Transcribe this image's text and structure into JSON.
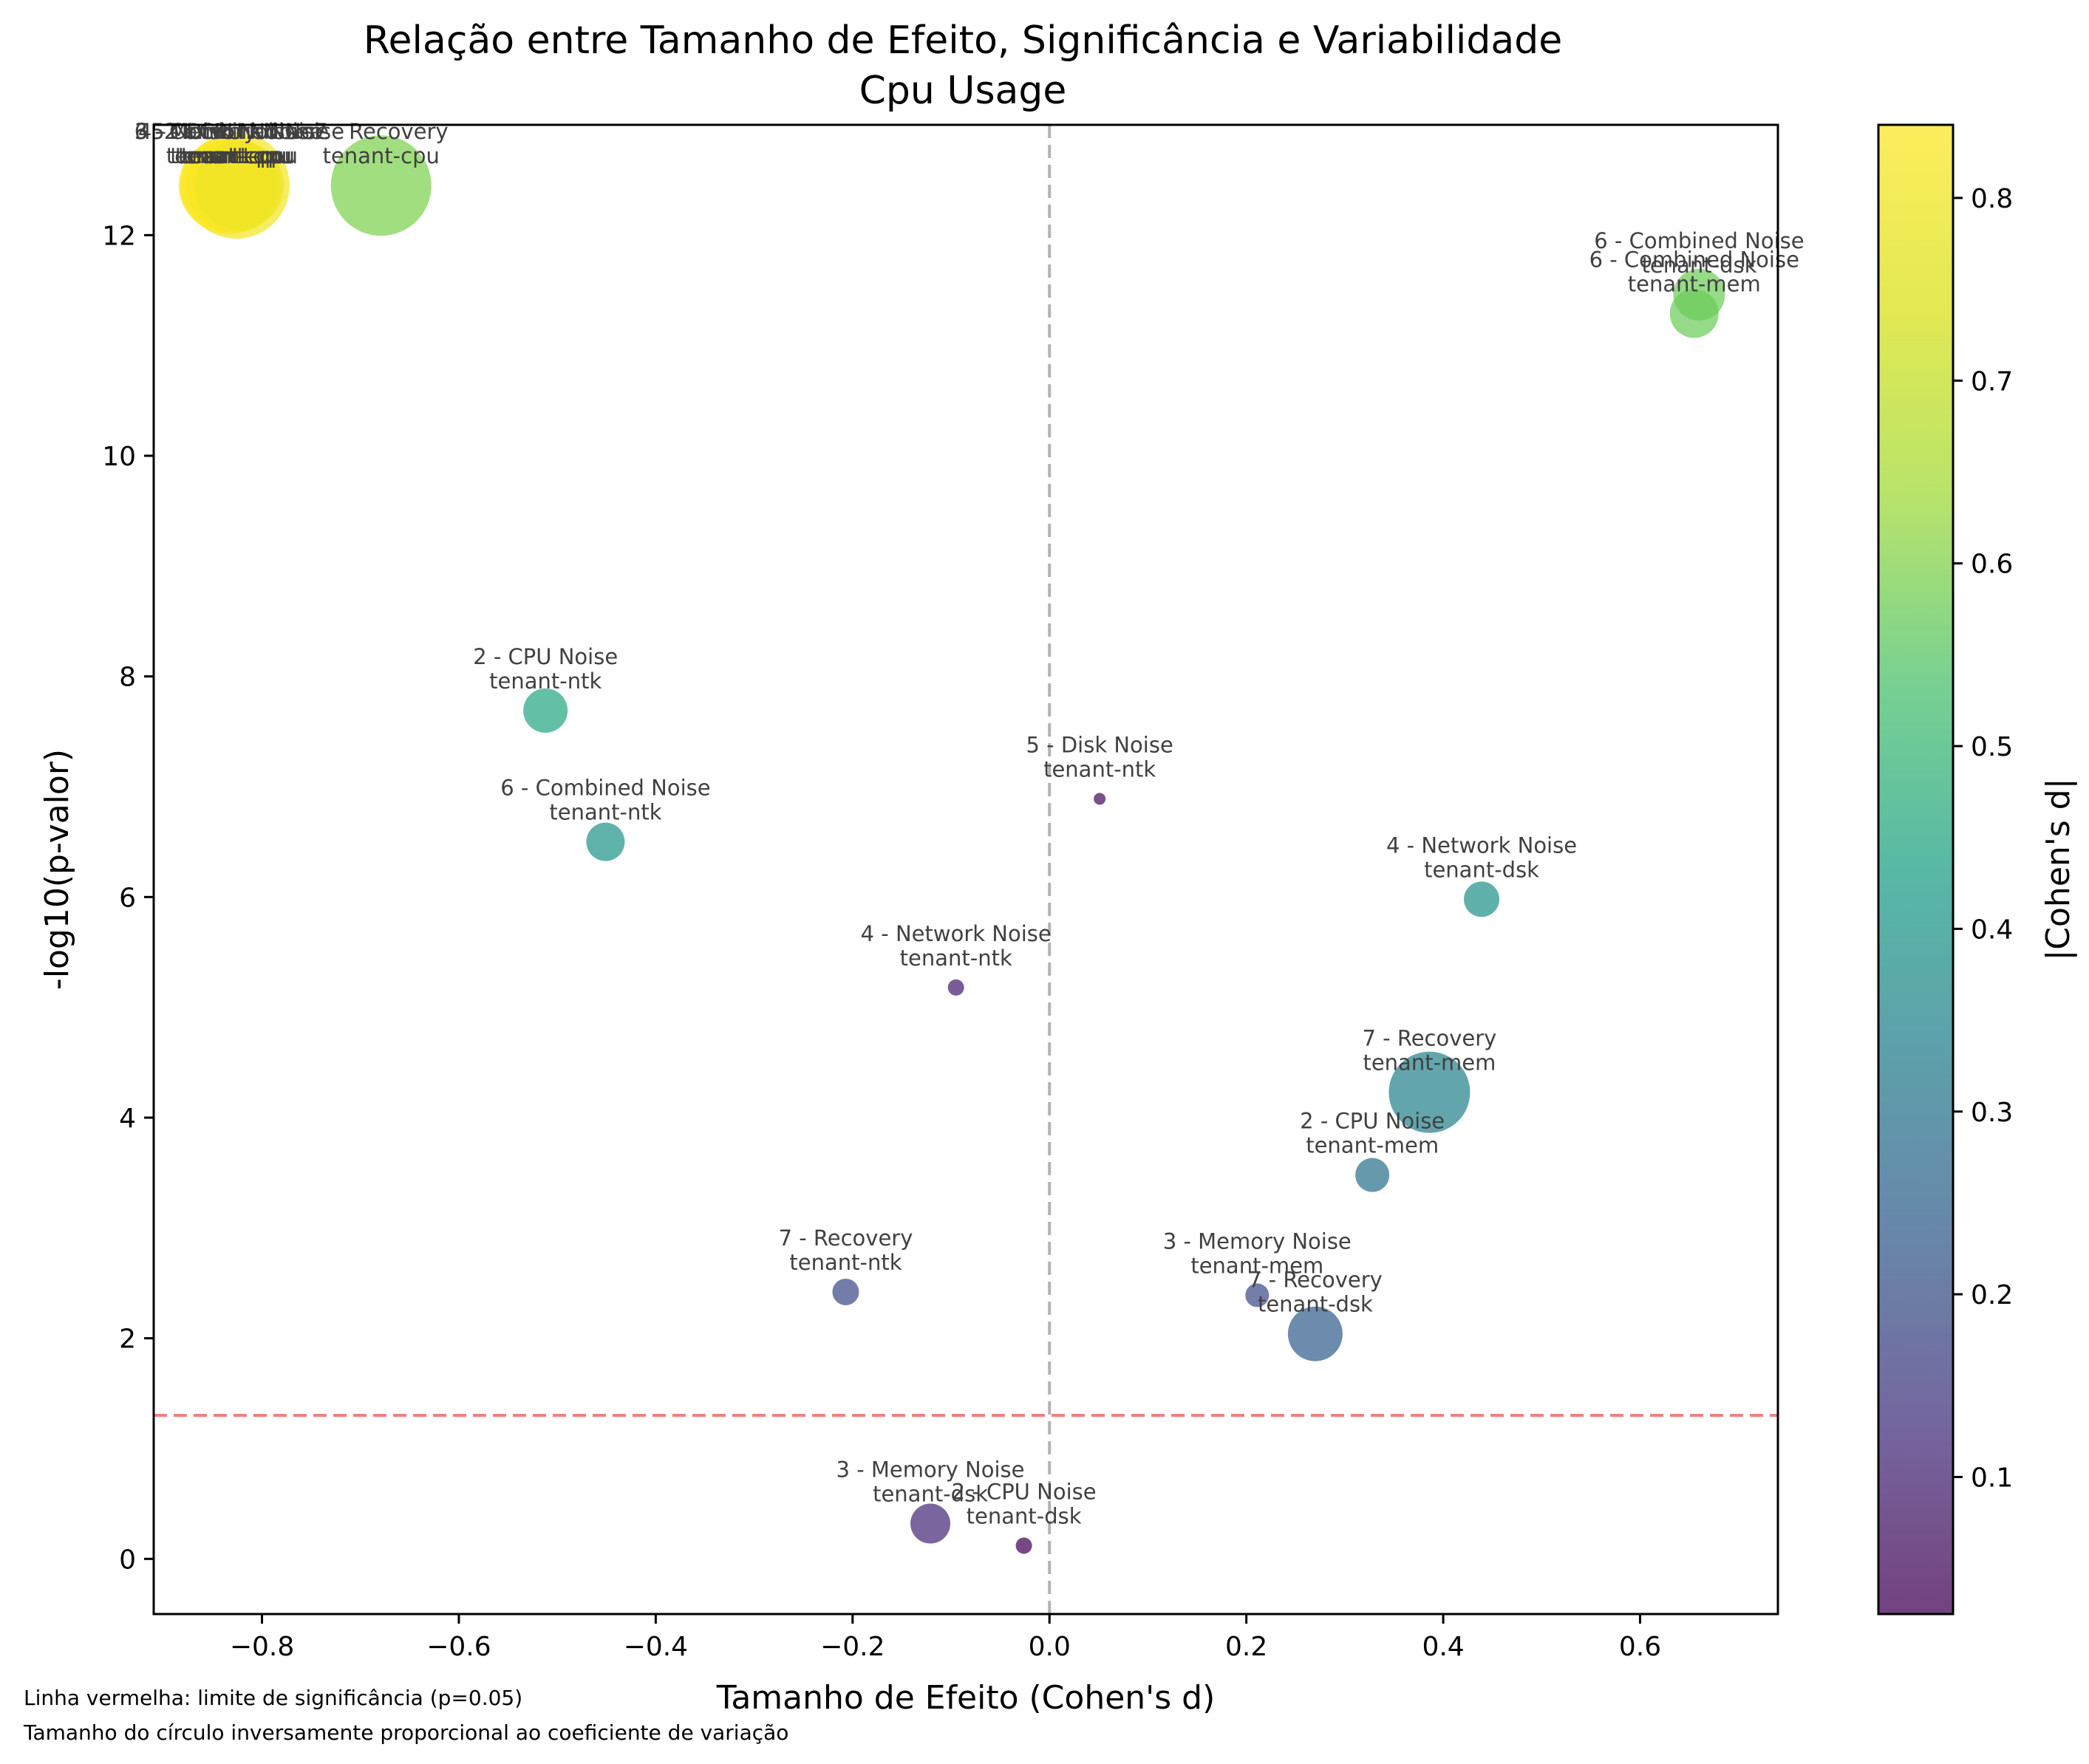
{
  "chart_data": {
    "type": "scatter",
    "title": "Relação entre Tamanho de Efeito, Significância e Variabilidade",
    "subtitle": "Cpu Usage",
    "xlabel": "Tamanho de Efeito (Cohen's d)",
    "ylabel": "-log10(p-valor)",
    "xlim": [
      -0.91,
      0.74
    ],
    "ylim": [
      -0.5,
      13.0
    ],
    "xticks": [
      -0.8,
      -0.6,
      -0.4,
      -0.2,
      0.0,
      0.2,
      0.4,
      0.6
    ],
    "xtick_labels": [
      "−0.8",
      "−0.6",
      "−0.4",
      "−0.2",
      "0.0",
      "0.2",
      "0.4",
      "0.6"
    ],
    "yticks": [
      0,
      2,
      4,
      6,
      8,
      10,
      12
    ],
    "ytick_labels": [
      "0",
      "2",
      "4",
      "6",
      "8",
      "10",
      "12"
    ],
    "grid": false,
    "significance_line": 1.301,
    "zero_line": 0.0,
    "colorbar": {
      "label": "|Cohen's d|",
      "range": [
        0.025,
        0.84
      ],
      "ticks": [
        0.1,
        0.2,
        0.3,
        0.4,
        0.5,
        0.6,
        0.7,
        0.8
      ],
      "tick_labels": [
        "0.1",
        "0.2",
        "0.3",
        "0.4",
        "0.5",
        "0.6",
        "0.7",
        "0.8"
      ],
      "colormap": "viridis"
    },
    "points": [
      {
        "phase": "2 - CPU Noise",
        "tenant": "tenant-ntk",
        "x": -0.512,
        "y": 7.69,
        "r": 30
      },
      {
        "phase": "6 - Combined Noise",
        "tenant": "tenant-ntk",
        "x": -0.451,
        "y": 6.5,
        "r": 26
      },
      {
        "phase": "5 - Disk Noise",
        "tenant": "tenant-ntk",
        "x": 0.051,
        "y": 6.89,
        "r": 8
      },
      {
        "phase": "4 - Network Noise",
        "tenant": "tenant-dsk",
        "x": 0.439,
        "y": 5.98,
        "r": 24
      },
      {
        "phase": "4 - Network Noise",
        "tenant": "tenant-ntk",
        "x": -0.095,
        "y": 5.18,
        "r": 11
      },
      {
        "phase": "7 - Recovery",
        "tenant": "tenant-mem",
        "x": 0.386,
        "y": 4.23,
        "r": 55
      },
      {
        "phase": "2 - CPU Noise",
        "tenant": "tenant-mem",
        "x": 0.328,
        "y": 3.48,
        "r": 23
      },
      {
        "phase": "7 - Recovery",
        "tenant": "tenant-ntk",
        "x": -0.207,
        "y": 2.42,
        "r": 18
      },
      {
        "phase": "3 - Memory Noise",
        "tenant": "tenant-mem",
        "x": 0.211,
        "y": 2.39,
        "r": 16
      },
      {
        "phase": "7 - Recovery",
        "tenant": "tenant-dsk",
        "x": 0.27,
        "y": 2.04,
        "r": 37
      },
      {
        "phase": "3 - Memory Noise",
        "tenant": "tenant-dsk",
        "x": -0.121,
        "y": 0.32,
        "r": 27
      },
      {
        "phase": "2 - CPU Noise",
        "tenant": "tenant-dsk",
        "x": -0.026,
        "y": 0.12,
        "r": 11
      },
      {
        "phase": "6 - Combined Noise",
        "tenant": "tenant-dsk",
        "x": 0.66,
        "y": 11.46,
        "r": 35
      },
      {
        "phase": "6 - Combined Noise",
        "tenant": "tenant-mem",
        "x": 0.655,
        "y": 11.29,
        "r": 33
      },
      {
        "phase": "7 - Recovery",
        "tenant": "tenant-cpu",
        "x": -0.679,
        "y": 12.45,
        "r": 68
      },
      {
        "phase": "2 - CPU Noise",
        "tenant": "tenant-cpu",
        "x": -0.826,
        "y": 12.45,
        "r": 72
      },
      {
        "phase": "3 - Memory Noise",
        "tenant": "tenant-cpu",
        "x": -0.834,
        "y": 12.45,
        "r": 66
      },
      {
        "phase": "4 - Network Noise",
        "tenant": "tenant-cpu",
        "x": -0.829,
        "y": 12.45,
        "r": 64
      },
      {
        "phase": "5 - Disk Noise",
        "tenant": "tenant-cpu",
        "x": -0.838,
        "y": 12.45,
        "r": 62
      },
      {
        "phase": "6 - Combined Noise",
        "tenant": "tenant-cpu",
        "x": -0.823,
        "y": 12.45,
        "r": 60
      }
    ]
  },
  "footnotes": [
    "Linha vermelha: limite de significância (p=0.05)",
    "Tamanho do círculo inversamente proporcional ao coeficiente de variação"
  ]
}
